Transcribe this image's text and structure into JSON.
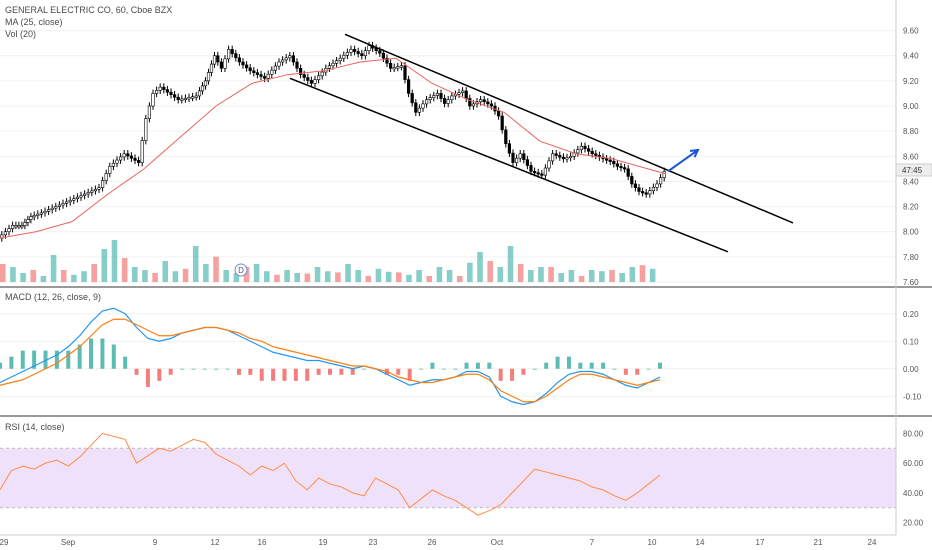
{
  "header": {
    "symbol_line": "GENERAL ELECTRIC CO, 60, Cboe BZX",
    "ma_label": "MA (25, close)",
    "vol_label": "Vol (20)"
  },
  "macd": {
    "label": "MACD (12, 26, close, 9)"
  },
  "rsi": {
    "label": "RSI (14, close)"
  },
  "event_marker": {
    "label": "D"
  },
  "price_tag": {
    "label": "47:45"
  },
  "colors": {
    "up": "#26a69a",
    "down": "#ef5350",
    "ma": "#e8625e",
    "macd_line": "#2196f3",
    "signal_line": "#ff7f0e",
    "rsi_line": "#ff8c42",
    "rsi_band": "#f0e1fb",
    "arrow": "#1b56d8",
    "channel": "#000000"
  },
  "chart_data": [
    {
      "type": "candlestick",
      "title": "",
      "ylim": [
        7.6,
        9.7
      ],
      "x_ticks": [
        "29",
        "Sep",
        "9",
        "12",
        "16",
        "19",
        "23",
        "26",
        "Oct",
        "7",
        "10",
        "14",
        "17",
        "21",
        "24"
      ],
      "y_ticks": [
        "9.60",
        "9.40",
        "9.20",
        "9.00",
        "8.80",
        "8.60",
        "8.40",
        "8.20",
        "8.00",
        "7.80",
        "7.60"
      ],
      "close_path": [
        [
          0,
          7.95
        ],
        [
          8,
          8.05
        ],
        [
          13,
          8.05
        ],
        [
          18,
          8.12
        ],
        [
          24,
          8.15
        ],
        [
          32,
          8.2
        ],
        [
          40,
          8.25
        ],
        [
          48,
          8.3
        ],
        [
          56,
          8.35
        ],
        [
          62,
          8.52
        ],
        [
          70,
          8.62
        ],
        [
          78,
          8.55
        ],
        [
          82,
          8.9
        ],
        [
          86,
          9.1
        ],
        [
          90,
          9.15
        ],
        [
          100,
          9.05
        ],
        [
          110,
          9.08
        ],
        [
          115,
          9.2
        ],
        [
          120,
          9.4
        ],
        [
          124,
          9.3
        ],
        [
          128,
          9.45
        ],
        [
          134,
          9.35
        ],
        [
          140,
          9.28
        ],
        [
          148,
          9.22
        ],
        [
          156,
          9.35
        ],
        [
          162,
          9.4
        ],
        [
          168,
          9.25
        ],
        [
          174,
          9.18
        ],
        [
          182,
          9.3
        ],
        [
          190,
          9.38
        ],
        [
          196,
          9.45
        ],
        [
          202,
          9.4
        ],
        [
          206,
          9.48
        ],
        [
          212,
          9.42
        ],
        [
          218,
          9.3
        ],
        [
          224,
          9.32
        ],
        [
          228,
          9.1
        ],
        [
          232,
          8.95
        ],
        [
          238,
          9.05
        ],
        [
          244,
          9.1
        ],
        [
          248,
          9.02
        ],
        [
          252,
          9.08
        ],
        [
          258,
          9.12
        ],
        [
          262,
          9.0
        ],
        [
          268,
          9.05
        ],
        [
          274,
          9.0
        ],
        [
          278,
          8.92
        ],
        [
          282,
          8.7
        ],
        [
          286,
          8.55
        ],
        [
          290,
          8.62
        ],
        [
          296,
          8.48
        ],
        [
          302,
          8.45
        ],
        [
          308,
          8.62
        ],
        [
          314,
          8.58
        ],
        [
          318,
          8.6
        ],
        [
          324,
          8.68
        ],
        [
          330,
          8.62
        ],
        [
          336,
          8.58
        ],
        [
          340,
          8.56
        ],
        [
          344,
          8.52
        ],
        [
          348,
          8.5
        ],
        [
          352,
          8.38
        ],
        [
          356,
          8.32
        ],
        [
          360,
          8.3
        ],
        [
          366,
          8.38
        ],
        [
          370,
          8.48
        ]
      ],
      "ma_path": [
        [
          0,
          7.95
        ],
        [
          20,
          8.0
        ],
        [
          40,
          8.08
        ],
        [
          60,
          8.3
        ],
        [
          80,
          8.5
        ],
        [
          100,
          8.75
        ],
        [
          120,
          9.0
        ],
        [
          140,
          9.18
        ],
        [
          160,
          9.25
        ],
        [
          180,
          9.28
        ],
        [
          200,
          9.35
        ],
        [
          220,
          9.38
        ],
        [
          240,
          9.18
        ],
        [
          260,
          9.05
        ],
        [
          280,
          8.95
        ],
        [
          300,
          8.72
        ],
        [
          320,
          8.62
        ],
        [
          340,
          8.58
        ],
        [
          360,
          8.5
        ],
        [
          370,
          8.46
        ]
      ],
      "volume_max": 1,
      "volume": [
        0.3,
        0.25,
        0.15,
        0.2,
        0.1,
        0.45,
        0.2,
        0.12,
        0.18,
        0.3,
        0.55,
        0.7,
        0.4,
        0.25,
        0.2,
        0.15,
        0.35,
        0.18,
        0.22,
        0.6,
        0.3,
        0.42,
        0.2,
        0.15,
        0.25,
        0.3,
        0.18,
        0.12,
        0.2,
        0.15,
        0.14,
        0.25,
        0.18,
        0.16,
        0.3,
        0.2,
        0.1,
        0.22,
        0.17,
        0.16,
        0.12,
        0.2,
        0.1,
        0.25,
        0.2,
        0.1,
        0.32,
        0.5,
        0.35,
        0.25,
        0.6,
        0.3,
        0.2,
        0.25,
        0.25,
        0.15,
        0.2,
        0.1,
        0.2,
        0.18,
        0.2,
        0.15,
        0.25,
        0.28,
        0.22
      ],
      "channel_upper": [
        [
          345,
          9.57
        ],
        [
          793,
          8.07
        ]
      ],
      "channel_lower": [
        [
          290,
          9.22
        ],
        [
          728,
          7.84
        ]
      ],
      "arrow": [
        [
          668,
          8.48
        ],
        [
          698,
          8.65
        ]
      ]
    },
    {
      "type": "line",
      "title": "MACD (12, 26, close, 9)",
      "ylim": [
        -0.15,
        0.25
      ],
      "y_ticks": [
        "0.20",
        "0.10",
        "0.00",
        "-0.10"
      ],
      "series": [
        {
          "values": [
            -0.05,
            -0.03,
            -0.01,
            0.01,
            0.03,
            0.05,
            0.08,
            0.12,
            0.17,
            0.21,
            0.22,
            0.2,
            0.15,
            0.11,
            0.1,
            0.11,
            0.13,
            0.14,
            0.15,
            0.15,
            0.14,
            0.12,
            0.1,
            0.08,
            0.06,
            0.05,
            0.04,
            0.03,
            0.03,
            0.02,
            0.01,
            0.0,
            0.01,
            0.0,
            -0.02,
            -0.04,
            -0.06,
            -0.05,
            -0.04,
            -0.04,
            -0.03,
            -0.01,
            -0.01,
            -0.03,
            -0.1,
            -0.12,
            -0.13,
            -0.12,
            -0.09,
            -0.05,
            -0.02,
            -0.01,
            -0.01,
            -0.02,
            -0.04,
            -0.06,
            -0.07,
            -0.05,
            -0.03
          ]
        },
        {
          "values": [
            -0.06,
            -0.05,
            -0.04,
            -0.02,
            0.0,
            0.02,
            0.05,
            0.08,
            0.12,
            0.16,
            0.18,
            0.18,
            0.16,
            0.14,
            0.12,
            0.12,
            0.13,
            0.14,
            0.15,
            0.15,
            0.14,
            0.13,
            0.11,
            0.1,
            0.08,
            0.07,
            0.06,
            0.05,
            0.04,
            0.03,
            0.02,
            0.01,
            0.01,
            0.0,
            -0.01,
            -0.03,
            -0.04,
            -0.05,
            -0.05,
            -0.04,
            -0.03,
            -0.02,
            -0.02,
            -0.04,
            -0.08,
            -0.1,
            -0.12,
            -0.12,
            -0.1,
            -0.07,
            -0.04,
            -0.02,
            -0.02,
            -0.03,
            -0.04,
            -0.05,
            -0.06,
            -0.05,
            -0.04
          ]
        }
      ]
    },
    {
      "type": "line",
      "title": "RSI (14, close)",
      "ylim": [
        15,
        85
      ],
      "y_ticks": [
        "80.00",
        "60.00",
        "40.00",
        "20.00"
      ],
      "band": [
        30,
        70
      ],
      "series": [
        {
          "values": [
            42,
            55,
            58,
            56,
            60,
            62,
            58,
            64,
            72,
            80,
            78,
            76,
            60,
            65,
            70,
            68,
            72,
            76,
            74,
            66,
            62,
            58,
            52,
            58,
            55,
            60,
            48,
            42,
            50,
            46,
            44,
            40,
            38,
            50,
            46,
            42,
            30,
            36,
            42,
            38,
            35,
            30,
            25,
            28,
            32,
            40,
            48,
            56,
            54,
            52,
            50,
            48,
            44,
            42,
            38,
            35,
            40,
            46,
            52
          ]
        }
      ]
    }
  ]
}
